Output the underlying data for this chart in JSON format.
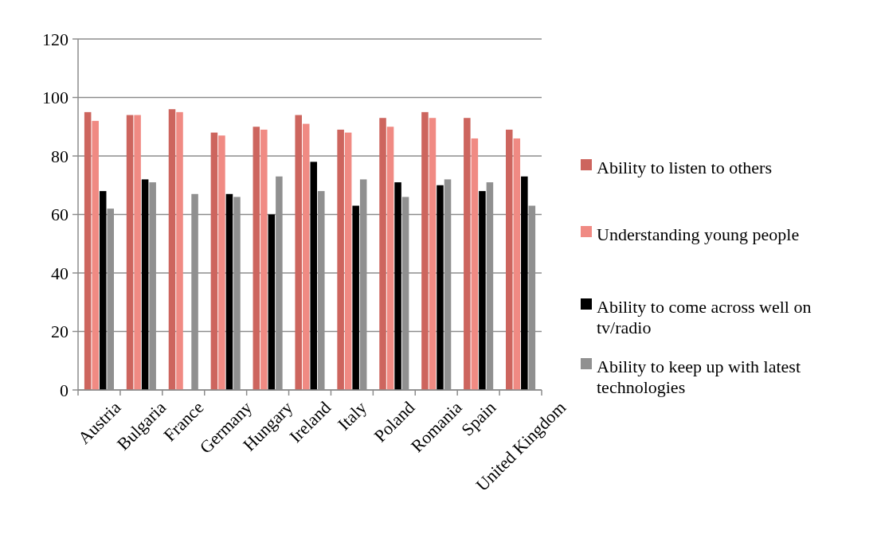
{
  "chart_data": {
    "type": "bar",
    "categories": [
      "Austria",
      "Bulgaria",
      "France",
      "Germany",
      "Hungary",
      "Ireland",
      "Italy",
      "Poland",
      "Romania",
      "Spain",
      "United Kingdom"
    ],
    "series": [
      {
        "name": "Ability to listen to others",
        "color": "#cd655e",
        "values": [
          95,
          94,
          96,
          88,
          90,
          94,
          89,
          93,
          95,
          93,
          89
        ]
      },
      {
        "name": "Understanding young people",
        "color": "#f08a83",
        "values": [
          92,
          94,
          95,
          87,
          89,
          91,
          88,
          90,
          93,
          86,
          86
        ]
      },
      {
        "name": "Ability to come across well on tv/radio",
        "color": "#000000",
        "values": [
          68,
          72,
          null,
          67,
          60,
          78,
          63,
          71,
          70,
          68,
          73
        ]
      },
      {
        "name": "Ability to keep up with latest technologies",
        "color": "#909090",
        "values": [
          62,
          71,
          67,
          66,
          73,
          68,
          72,
          66,
          72,
          71,
          63
        ]
      }
    ],
    "ylim": [
      0,
      120
    ],
    "yticks": [
      0,
      20,
      40,
      60,
      80,
      100,
      120
    ],
    "grid": "y",
    "legend": "right"
  }
}
